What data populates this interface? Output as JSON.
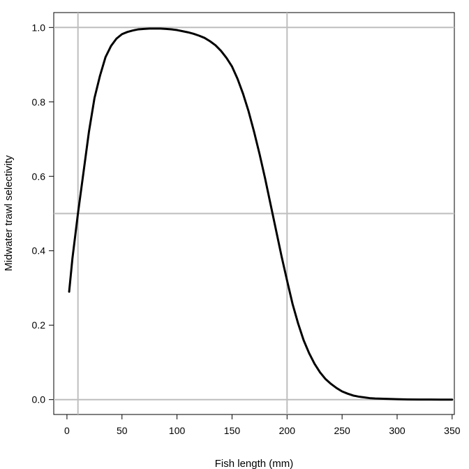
{
  "chart_data": {
    "type": "line",
    "title": "",
    "xlabel": "Fish length  (mm)",
    "ylabel": "Midwater trawl selectivity",
    "xlim": [
      -12,
      352
    ],
    "ylim": [
      -0.04,
      1.04
    ],
    "xticks": [
      0,
      50,
      100,
      150,
      200,
      250,
      300,
      350
    ],
    "yticks": [
      0.0,
      0.2,
      0.4,
      0.6,
      0.8,
      1.0
    ],
    "ytick_labels": [
      "0.0",
      "0.2",
      "0.4",
      "0.6",
      "0.8",
      "1.0"
    ],
    "reference_lines": {
      "vertical": [
        10,
        200
      ],
      "horizontal": [
        0.0,
        0.5,
        1.0
      ],
      "color": "#bebebe"
    },
    "line_color": "#000000",
    "series": [
      {
        "x": [
          2,
          5,
          10,
          15,
          20,
          25,
          30,
          35,
          40,
          45,
          50,
          55,
          60,
          65,
          70,
          75,
          80,
          85,
          90,
          95,
          100,
          105,
          110,
          115,
          120,
          125,
          130,
          135,
          140,
          145,
          150,
          155,
          160,
          165,
          170,
          175,
          180,
          185,
          190,
          195,
          200,
          205,
          210,
          215,
          220,
          225,
          230,
          235,
          240,
          245,
          250,
          255,
          260,
          265,
          270,
          275,
          280,
          290,
          300,
          310,
          320,
          330,
          340,
          350
        ],
        "y": [
          0.29,
          0.38,
          0.5,
          0.61,
          0.72,
          0.81,
          0.87,
          0.92,
          0.95,
          0.97,
          0.982,
          0.988,
          0.992,
          0.995,
          0.996,
          0.997,
          0.997,
          0.997,
          0.996,
          0.995,
          0.993,
          0.99,
          0.987,
          0.983,
          0.978,
          0.972,
          0.963,
          0.952,
          0.937,
          0.918,
          0.895,
          0.862,
          0.822,
          0.775,
          0.72,
          0.66,
          0.595,
          0.525,
          0.455,
          0.385,
          0.32,
          0.257,
          0.205,
          0.16,
          0.125,
          0.096,
          0.073,
          0.055,
          0.042,
          0.031,
          0.022,
          0.016,
          0.011,
          0.008,
          0.006,
          0.004,
          0.003,
          0.002,
          0.001,
          0.0005,
          0.0002,
          0.0001,
          0.0,
          0.0
        ]
      }
    ]
  }
}
